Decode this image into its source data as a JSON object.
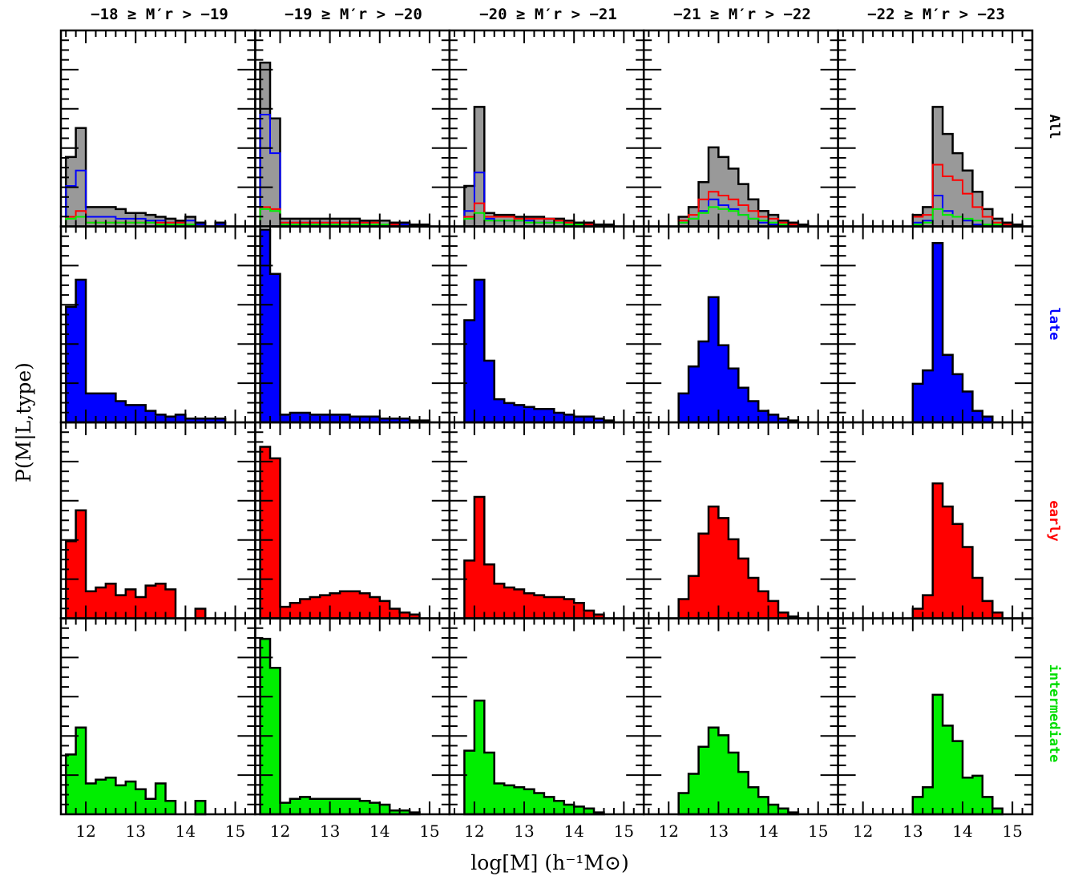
{
  "colors": {
    "All": "#999999",
    "late": "#0000ff",
    "early": "#ff0000",
    "intermediate": "#00ee00",
    "outline": "#000000"
  },
  "chart_data": {
    "type": "bar",
    "ylabel": "P(M|L,type)",
    "xlabel": "log[M] (h⁻¹M⊙)",
    "xlim": [
      11.5,
      15.4
    ],
    "ylim": [
      0,
      1
    ],
    "x_ticks": [
      "12",
      "13",
      "14",
      "15"
    ],
    "bin_edges": [
      11.6,
      11.8,
      12.0,
      12.2,
      12.4,
      12.6,
      12.8,
      13.0,
      13.2,
      13.4,
      13.6,
      13.8,
      14.0,
      14.2,
      14.4,
      14.6,
      14.8,
      15.0,
      15.2,
      15.4
    ],
    "columns": [
      "−18 ≥ M′r > −19",
      "−19 ≥ M′r > −20",
      "−20 ≥ M′r > −21",
      "−21 ≥ M′r > −22",
      "−22 ≥ M′r > −23"
    ],
    "rows": [
      "All",
      "late",
      "early",
      "intermediate"
    ],
    "panels": {
      "All": {
        "all": [
          [
            0.36,
            0.51,
            0.1,
            0.1,
            0.1,
            0.09,
            0.07,
            0.07,
            0.06,
            0.05,
            0.04,
            0.03,
            0.05,
            0.02,
            0.0,
            0.02,
            0.0,
            0.0,
            0.0
          ],
          [
            0.85,
            0.56,
            0.04,
            0.04,
            0.04,
            0.04,
            0.04,
            0.04,
            0.04,
            0.04,
            0.03,
            0.03,
            0.03,
            0.02,
            0.02,
            0.01,
            0.01,
            0.0,
            0.0
          ],
          [
            0.0,
            0.21,
            0.62,
            0.07,
            0.06,
            0.06,
            0.05,
            0.05,
            0.05,
            0.04,
            0.04,
            0.03,
            0.02,
            0.02,
            0.01,
            0.01,
            0.0,
            0.0,
            0.0
          ],
          [
            0.0,
            0.0,
            0.0,
            0.05,
            0.1,
            0.23,
            0.41,
            0.36,
            0.3,
            0.22,
            0.14,
            0.08,
            0.06,
            0.03,
            0.02,
            0.01,
            0.0,
            0.0,
            0.0
          ],
          [
            0.0,
            0.0,
            0.0,
            0.0,
            0.0,
            0.0,
            0.0,
            0.06,
            0.1,
            0.62,
            0.48,
            0.38,
            0.29,
            0.18,
            0.09,
            0.04,
            0.02,
            0.01,
            0.0
          ]
        ],
        "late": [
          [
            0.21,
            0.29,
            0.05,
            0.05,
            0.05,
            0.04,
            0.04,
            0.04,
            0.03,
            0.03,
            0.02,
            0.02,
            0.03,
            0.01,
            0.0,
            0.01,
            0.0,
            0.0,
            0.0
          ],
          [
            0.58,
            0.38,
            0.02,
            0.02,
            0.02,
            0.02,
            0.02,
            0.02,
            0.02,
            0.02,
            0.02,
            0.01,
            0.01,
            0.01,
            0.01,
            0.0,
            0.0,
            0.0,
            0.0
          ],
          [
            0.0,
            0.08,
            0.28,
            0.04,
            0.03,
            0.03,
            0.03,
            0.03,
            0.02,
            0.02,
            0.02,
            0.01,
            0.01,
            0.01,
            0.0,
            0.0,
            0.0,
            0.0,
            0.0
          ],
          [
            0.0,
            0.0,
            0.0,
            0.02,
            0.04,
            0.08,
            0.14,
            0.11,
            0.09,
            0.06,
            0.04,
            0.02,
            0.01,
            0.01,
            0.0,
            0.0,
            0.0,
            0.0,
            0.0
          ],
          [
            0.0,
            0.0,
            0.0,
            0.0,
            0.0,
            0.0,
            0.0,
            0.02,
            0.03,
            0.16,
            0.08,
            0.05,
            0.03,
            0.01,
            0.01,
            0.0,
            0.0,
            0.0,
            0.0
          ]
        ],
        "early": [
          [
            0.05,
            0.08,
            0.02,
            0.02,
            0.02,
            0.02,
            0.02,
            0.02,
            0.02,
            0.02,
            0.02,
            0.02,
            0.01,
            0.0,
            0.0,
            0.0,
            0.0,
            0.0,
            0.0
          ],
          [
            0.1,
            0.09,
            0.02,
            0.02,
            0.02,
            0.02,
            0.02,
            0.02,
            0.02,
            0.02,
            0.02,
            0.02,
            0.01,
            0.01,
            0.0,
            0.0,
            0.0,
            0.0,
            0.0
          ],
          [
            0.0,
            0.05,
            0.12,
            0.05,
            0.05,
            0.05,
            0.04,
            0.04,
            0.04,
            0.04,
            0.03,
            0.02,
            0.01,
            0.01,
            0.0,
            0.0,
            0.0,
            0.0,
            0.0
          ],
          [
            0.0,
            0.0,
            0.0,
            0.03,
            0.06,
            0.14,
            0.18,
            0.16,
            0.14,
            0.11,
            0.08,
            0.05,
            0.04,
            0.02,
            0.01,
            0.0,
            0.0,
            0.0,
            0.0
          ],
          [
            0.0,
            0.0,
            0.0,
            0.0,
            0.0,
            0.0,
            0.0,
            0.05,
            0.06,
            0.32,
            0.26,
            0.24,
            0.17,
            0.1,
            0.05,
            0.02,
            0.01,
            0.0,
            0.0
          ]
        ],
        "intermediate": [
          [
            0.04,
            0.05,
            0.02,
            0.02,
            0.02,
            0.02,
            0.02,
            0.02,
            0.02,
            0.01,
            0.01,
            0.01,
            0.01,
            0.0,
            0.0,
            0.0,
            0.0,
            0.0,
            0.0
          ],
          [
            0.09,
            0.08,
            0.01,
            0.01,
            0.01,
            0.01,
            0.01,
            0.01,
            0.01,
            0.01,
            0.01,
            0.01,
            0.01,
            0.0,
            0.0,
            0.0,
            0.0,
            0.0,
            0.0
          ],
          [
            0.0,
            0.04,
            0.07,
            0.03,
            0.03,
            0.03,
            0.03,
            0.02,
            0.02,
            0.02,
            0.02,
            0.01,
            0.01,
            0.0,
            0.0,
            0.0,
            0.0,
            0.0,
            0.0
          ],
          [
            0.0,
            0.0,
            0.0,
            0.02,
            0.04,
            0.07,
            0.1,
            0.09,
            0.08,
            0.06,
            0.04,
            0.03,
            0.02,
            0.01,
            0.0,
            0.0,
            0.0,
            0.0,
            0.0
          ],
          [
            0.0,
            0.0,
            0.0,
            0.0,
            0.0,
            0.0,
            0.0,
            0.01,
            0.02,
            0.09,
            0.06,
            0.05,
            0.04,
            0.03,
            0.01,
            0.01,
            0.0,
            0.0,
            0.0
          ]
        ]
      },
      "late": [
        [
          0.6,
          0.74,
          0.15,
          0.15,
          0.15,
          0.11,
          0.09,
          0.09,
          0.06,
          0.04,
          0.03,
          0.04,
          0.02,
          0.02,
          0.02,
          0.02,
          0.0,
          0.0,
          0.0
        ],
        [
          1.0,
          0.77,
          0.04,
          0.05,
          0.05,
          0.04,
          0.04,
          0.04,
          0.04,
          0.03,
          0.03,
          0.03,
          0.02,
          0.02,
          0.02,
          0.01,
          0.01,
          0.0,
          0.0
        ],
        [
          0.0,
          0.53,
          0.74,
          0.32,
          0.12,
          0.1,
          0.09,
          0.08,
          0.07,
          0.07,
          0.05,
          0.04,
          0.03,
          0.03,
          0.02,
          0.01,
          0.0,
          0.0,
          0.0
        ],
        [
          0.0,
          0.0,
          0.0,
          0.15,
          0.29,
          0.42,
          0.65,
          0.4,
          0.28,
          0.18,
          0.11,
          0.06,
          0.04,
          0.02,
          0.01,
          0.0,
          0.0,
          0.0,
          0.0
        ],
        [
          0.0,
          0.0,
          0.0,
          0.0,
          0.0,
          0.0,
          0.0,
          0.2,
          0.27,
          0.93,
          0.35,
          0.25,
          0.16,
          0.06,
          0.03,
          0.0,
          0.0,
          0.0,
          0.0
        ]
      ],
      "early": [
        [
          0.4,
          0.56,
          0.14,
          0.16,
          0.18,
          0.12,
          0.15,
          0.11,
          0.17,
          0.18,
          0.15,
          0.0,
          0.0,
          0.05,
          0.0,
          0.0,
          0.0,
          0.0,
          0.0
        ],
        [
          0.89,
          0.83,
          0.06,
          0.08,
          0.1,
          0.11,
          0.12,
          0.13,
          0.14,
          0.14,
          0.13,
          0.11,
          0.09,
          0.05,
          0.03,
          0.02,
          0.0,
          0.0,
          0.0
        ],
        [
          0.0,
          0.3,
          0.63,
          0.28,
          0.18,
          0.16,
          0.15,
          0.13,
          0.12,
          0.11,
          0.11,
          0.1,
          0.08,
          0.04,
          0.02,
          0.0,
          0.0,
          0.0,
          0.0
        ],
        [
          0.0,
          0.0,
          0.0,
          0.1,
          0.22,
          0.44,
          0.58,
          0.52,
          0.41,
          0.31,
          0.21,
          0.14,
          0.09,
          0.03,
          0.01,
          0.0,
          0.0,
          0.0,
          0.0
        ],
        [
          0.0,
          0.0,
          0.0,
          0.0,
          0.0,
          0.0,
          0.0,
          0.05,
          0.12,
          0.7,
          0.58,
          0.49,
          0.37,
          0.21,
          0.09,
          0.03,
          0.0,
          0.0,
          0.0
        ]
      ],
      "intermediate": [
        [
          0.31,
          0.45,
          0.16,
          0.18,
          0.19,
          0.15,
          0.17,
          0.13,
          0.08,
          0.16,
          0.07,
          0.0,
          0.0,
          0.07,
          0.0,
          0.0,
          0.0,
          0.0,
          0.0
        ],
        [
          0.91,
          0.76,
          0.06,
          0.08,
          0.09,
          0.08,
          0.08,
          0.08,
          0.08,
          0.08,
          0.07,
          0.06,
          0.05,
          0.02,
          0.02,
          0.01,
          0.0,
          0.0,
          0.0
        ],
        [
          0.0,
          0.33,
          0.59,
          0.32,
          0.16,
          0.15,
          0.14,
          0.13,
          0.11,
          0.09,
          0.07,
          0.05,
          0.04,
          0.03,
          0.01,
          0.0,
          0.0,
          0.0,
          0.0
        ],
        [
          0.0,
          0.0,
          0.0,
          0.11,
          0.21,
          0.35,
          0.45,
          0.41,
          0.32,
          0.22,
          0.14,
          0.09,
          0.05,
          0.03,
          0.01,
          0.0,
          0.0,
          0.0,
          0.0
        ],
        [
          0.0,
          0.0,
          0.0,
          0.0,
          0.0,
          0.0,
          0.0,
          0.09,
          0.14,
          0.62,
          0.46,
          0.38,
          0.19,
          0.2,
          0.09,
          0.03,
          0.0,
          0.0,
          0.0
        ]
      ]
    }
  }
}
